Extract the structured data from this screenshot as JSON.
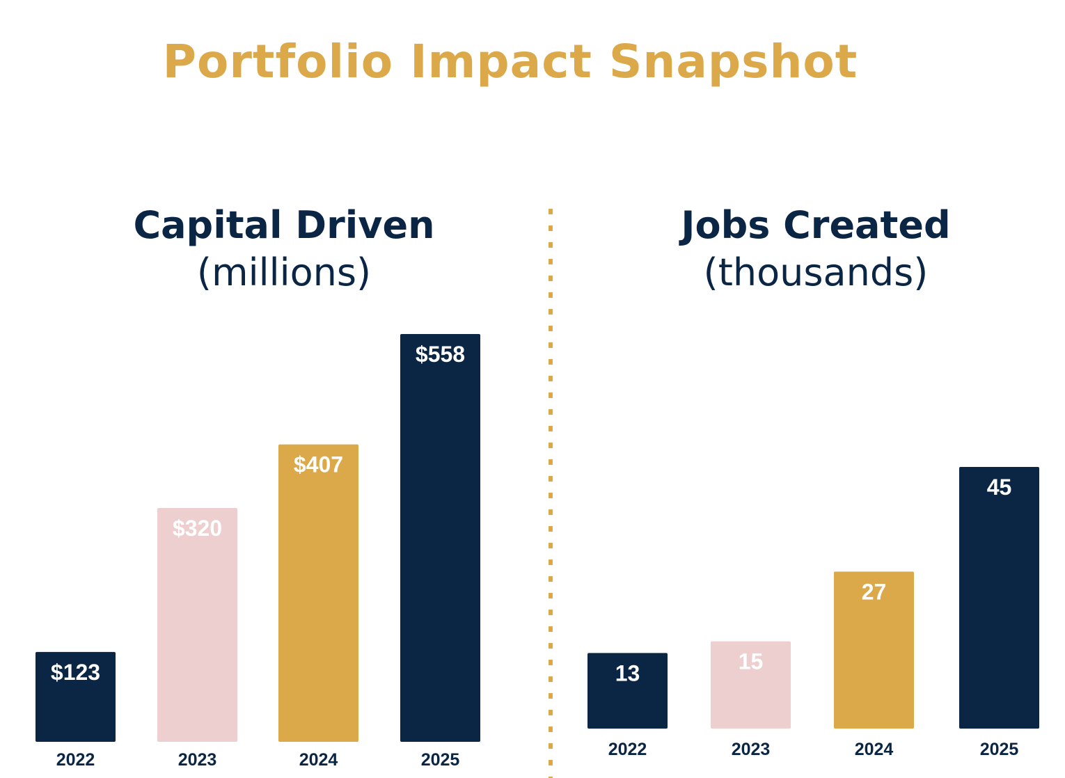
{
  "title": "Portfolio Impact Snapshot",
  "colors": {
    "title": "#DBA94A",
    "navy": "#0B2644",
    "pink": "#EDCFD0",
    "gold": "#DBA94A",
    "label_on_dark": "#FFFFFF",
    "axis_label": "#0B2644",
    "divider": "#DBA94A"
  },
  "chart_data": [
    {
      "type": "bar",
      "title": "Capital Driven",
      "subtitle": "(millions)",
      "categories": [
        "2022",
        "2023",
        "2024",
        "2025"
      ],
      "values": [
        123,
        320,
        407,
        558
      ],
      "data_labels": [
        "$123",
        "$320",
        "$407",
        "$558"
      ],
      "bar_colors": [
        "#0B2644",
        "#EDCFD0",
        "#DBA94A",
        "#0B2644"
      ],
      "ylim": [
        0,
        558
      ],
      "grid": false,
      "legend": "none"
    },
    {
      "type": "bar",
      "title": "Jobs Created",
      "subtitle": "(thousands)",
      "categories": [
        "2022",
        "2023",
        "2024",
        "2025"
      ],
      "values": [
        13,
        15,
        27,
        45
      ],
      "data_labels": [
        "13",
        "15",
        "27",
        "45"
      ],
      "bar_colors": [
        "#0B2644",
        "#EDCFD0",
        "#DBA94A",
        "#0B2644"
      ],
      "ylim": [
        0,
        45
      ],
      "grid": false,
      "legend": "none"
    }
  ]
}
